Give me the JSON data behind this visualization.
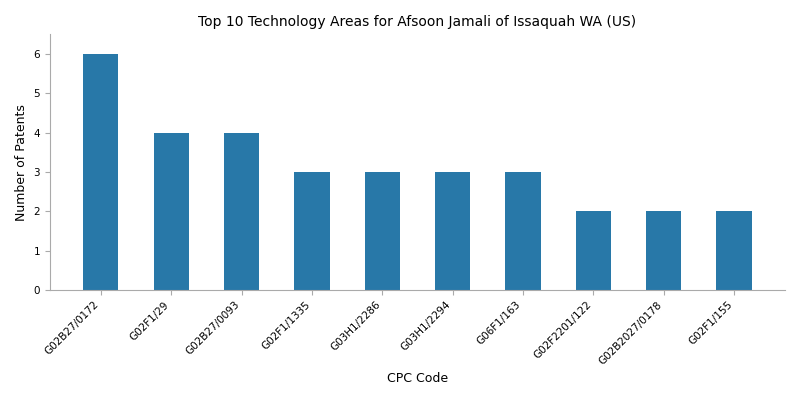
{
  "title": "Top 10 Technology Areas for Afsoon Jamali of Issaquah WA (US)",
  "xlabel": "CPC Code",
  "ylabel": "Number of Patents",
  "categories": [
    "G02B27/0172",
    "G02F1/29",
    "G02B27/0093",
    "G02F1/1335",
    "G03H1/2286",
    "G03H1/2294",
    "G06F1/163",
    "G02F2201/122",
    "G02B2027/0178",
    "G02F1/155"
  ],
  "values": [
    6,
    4,
    4,
    3,
    3,
    3,
    3,
    2,
    2,
    2
  ],
  "bar_color": "#2878a8",
  "ylim": [
    0,
    6.5
  ],
  "yticks": [
    0,
    1,
    2,
    3,
    4,
    5,
    6
  ],
  "figsize": [
    8.0,
    4.0
  ],
  "dpi": 100,
  "title_fontsize": 10,
  "axis_label_fontsize": 9,
  "tick_fontsize": 7.5,
  "bar_width": 0.5
}
